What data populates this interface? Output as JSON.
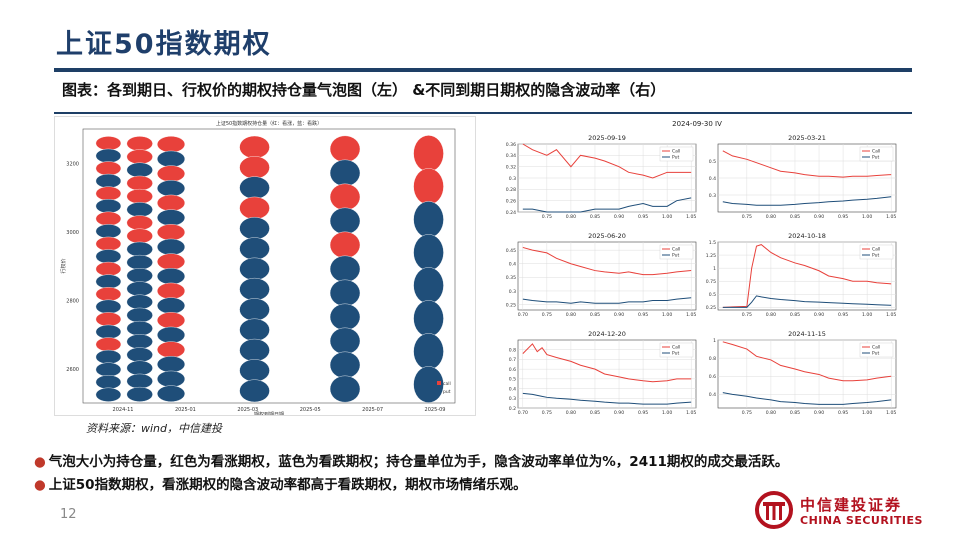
{
  "page": {
    "title": "上证50指数期权",
    "caption": "图表：各到期日、行权价的期权持仓量气泡图（左） &不同到期日期权的隐含波动率（右）",
    "source": "资料来源：wind，中信建投",
    "bullets": [
      "气泡大小为持仓量，红色为看涨期权，蓝色为看跌期权；持仓量单位为手，隐含波动率单位为%，2411期权的成交最活跃。",
      "上证50指数期权，看涨期权的隐含波动率都高于看跌期权，期权市场情绪乐观。"
    ],
    "bullet_marker": "●",
    "page_number": "12",
    "logo": {
      "cn": "中信建投证券",
      "en": "CHINA SECURITIES"
    },
    "colors": {
      "call": "#e8413b",
      "put": "#1f4e79",
      "brand": "#b3121f",
      "accent": "#1e3f66"
    }
  },
  "chart_data": [
    {
      "type": "scatter",
      "title": "上证50指数期权持仓量（红：看涨，蓝：看跌）",
      "xlabel": "期权到期日期",
      "ylabel": "行权价",
      "x_ticks": [
        "2024-11",
        "2025-01",
        "2025-03",
        "2025-05",
        "2025-07",
        "2025-09"
      ],
      "y_ticks": [
        2600,
        2800,
        3000,
        3200
      ],
      "ylim": [
        2500,
        3300
      ],
      "legend": [
        "call",
        "put"
      ],
      "expiries": [
        {
          "x": 0.05,
          "n_call": 9,
          "n_put": 12
        },
        {
          "x": 0.14,
          "n_call": 6,
          "n_put": 14
        },
        {
          "x": 0.23,
          "n_call": 8,
          "n_put": 10
        },
        {
          "x": 0.47,
          "n_call": 3,
          "n_put": 10
        },
        {
          "x": 0.73,
          "n_call": 3,
          "n_put": 8
        },
        {
          "x": 0.97,
          "n_call": 2,
          "n_put": 6
        }
      ]
    },
    {
      "type": "line",
      "title": "2025-09-19",
      "x": [
        0.7,
        0.72,
        0.75,
        0.77,
        0.8,
        0.82,
        0.85,
        0.87,
        0.9,
        0.92,
        0.95,
        0.97,
        1.0,
        1.02,
        1.05
      ],
      "series": [
        {
          "name": "Call",
          "values": [
            0.36,
            0.35,
            0.34,
            0.35,
            0.32,
            0.34,
            0.335,
            0.33,
            0.32,
            0.31,
            0.305,
            0.3,
            0.31,
            0.31,
            0.31
          ]
        },
        {
          "name": "Put",
          "values": [
            0.245,
            0.245,
            0.24,
            0.24,
            0.24,
            0.24,
            0.245,
            0.245,
            0.245,
            0.25,
            0.255,
            0.25,
            0.25,
            0.26,
            0.265
          ]
        }
      ],
      "ylim": [
        0.24,
        0.36
      ],
      "y_ticks": [
        0.24,
        0.26,
        0.28,
        0.3,
        0.32,
        0.34,
        0.36
      ],
      "x_ticks": [
        0.75,
        0.8,
        0.85,
        0.9,
        0.95,
        1.0,
        1.05
      ]
    },
    {
      "type": "line",
      "title": "2025-03-21",
      "x": [
        0.7,
        0.72,
        0.75,
        0.77,
        0.8,
        0.82,
        0.85,
        0.87,
        0.9,
        0.92,
        0.95,
        0.97,
        1.0,
        1.02,
        1.05
      ],
      "series": [
        {
          "name": "Call",
          "values": [
            0.56,
            0.53,
            0.51,
            0.49,
            0.46,
            0.44,
            0.43,
            0.42,
            0.41,
            0.41,
            0.405,
            0.41,
            0.41,
            0.415,
            0.42
          ]
        },
        {
          "name": "Put",
          "values": [
            0.26,
            0.25,
            0.245,
            0.24,
            0.24,
            0.24,
            0.245,
            0.25,
            0.255,
            0.26,
            0.265,
            0.27,
            0.275,
            0.28,
            0.29
          ]
        }
      ],
      "ylim": [
        0.2,
        0.6
      ],
      "y_ticks": [
        0.3,
        0.4,
        0.5
      ],
      "x_ticks": [
        0.75,
        0.8,
        0.85,
        0.9,
        0.95,
        1.0,
        1.05
      ]
    },
    {
      "type": "line",
      "title": "2025-06-20",
      "x": [
        0.7,
        0.72,
        0.75,
        0.77,
        0.8,
        0.82,
        0.85,
        0.87,
        0.9,
        0.92,
        0.95,
        0.97,
        1.0,
        1.02,
        1.05
      ],
      "series": [
        {
          "name": "Call",
          "values": [
            0.46,
            0.45,
            0.44,
            0.42,
            0.4,
            0.39,
            0.375,
            0.37,
            0.365,
            0.37,
            0.36,
            0.36,
            0.365,
            0.37,
            0.375
          ]
        },
        {
          "name": "Put",
          "values": [
            0.27,
            0.265,
            0.26,
            0.26,
            0.255,
            0.26,
            0.255,
            0.255,
            0.255,
            0.26,
            0.26,
            0.265,
            0.265,
            0.27,
            0.275
          ]
        }
      ],
      "ylim": [
        0.23,
        0.48
      ],
      "y_ticks": [
        0.25,
        0.3,
        0.35,
        0.4,
        0.45
      ],
      "x_ticks": [
        0.7,
        0.75,
        0.8,
        0.85,
        0.9,
        0.95,
        1.0,
        1.05
      ]
    },
    {
      "type": "line",
      "title": "2024-10-18",
      "x": [
        0.7,
        0.72,
        0.75,
        0.76,
        0.77,
        0.78,
        0.8,
        0.82,
        0.85,
        0.87,
        0.9,
        0.92,
        0.95,
        0.97,
        1.0,
        1.02,
        1.05
      ],
      "series": [
        {
          "name": "Call",
          "values": [
            0.25,
            0.26,
            0.27,
            1.0,
            1.42,
            1.45,
            1.3,
            1.2,
            1.1,
            1.05,
            0.95,
            0.85,
            0.8,
            0.75,
            0.75,
            0.72,
            0.7
          ]
        },
        {
          "name": "Put",
          "values": [
            0.25,
            0.25,
            0.25,
            0.35,
            0.47,
            0.45,
            0.42,
            0.4,
            0.38,
            0.36,
            0.35,
            0.34,
            0.33,
            0.32,
            0.31,
            0.3,
            0.29
          ]
        }
      ],
      "ylim": [
        0.2,
        1.5
      ],
      "y_ticks": [
        0.25,
        0.5,
        0.75,
        1.0,
        1.25,
        1.5
      ],
      "x_ticks": [
        0.75,
        0.8,
        0.85,
        0.9,
        0.95,
        1.0,
        1.05
      ]
    },
    {
      "type": "line",
      "title": "2024-12-20",
      "x": [
        0.7,
        0.72,
        0.73,
        0.74,
        0.75,
        0.77,
        0.8,
        0.82,
        0.85,
        0.87,
        0.9,
        0.92,
        0.95,
        0.97,
        1.0,
        1.02,
        1.05
      ],
      "series": [
        {
          "name": "Call",
          "values": [
            0.76,
            0.86,
            0.78,
            0.82,
            0.75,
            0.72,
            0.68,
            0.64,
            0.6,
            0.55,
            0.52,
            0.5,
            0.48,
            0.47,
            0.48,
            0.5,
            0.5
          ]
        },
        {
          "name": "Put",
          "values": [
            0.35,
            0.34,
            0.33,
            0.32,
            0.31,
            0.3,
            0.29,
            0.28,
            0.27,
            0.26,
            0.25,
            0.25,
            0.24,
            0.24,
            0.24,
            0.25,
            0.26
          ]
        }
      ],
      "ylim": [
        0.2,
        0.9
      ],
      "y_ticks": [
        0.2,
        0.3,
        0.4,
        0.5,
        0.6,
        0.7,
        0.8
      ],
      "x_ticks": [
        0.7,
        0.75,
        0.8,
        0.85,
        0.9,
        0.95,
        1.0,
        1.05
      ]
    },
    {
      "type": "line",
      "title": "2024-11-15",
      "x": [
        0.7,
        0.72,
        0.75,
        0.77,
        0.8,
        0.82,
        0.85,
        0.87,
        0.9,
        0.92,
        0.95,
        0.97,
        1.0,
        1.02,
        1.05
      ],
      "series": [
        {
          "name": "Call",
          "values": [
            0.98,
            0.95,
            0.9,
            0.82,
            0.78,
            0.72,
            0.68,
            0.65,
            0.62,
            0.58,
            0.55,
            0.55,
            0.56,
            0.58,
            0.6
          ]
        },
        {
          "name": "Put",
          "values": [
            0.42,
            0.4,
            0.38,
            0.36,
            0.34,
            0.32,
            0.31,
            0.3,
            0.29,
            0.29,
            0.29,
            0.3,
            0.31,
            0.32,
            0.34
          ]
        }
      ],
      "ylim": [
        0.25,
        1.0
      ],
      "y_ticks": [
        0.4,
        0.6,
        0.8,
        1.0
      ],
      "x_ticks": [
        0.75,
        0.8,
        0.85,
        0.9,
        0.95,
        1.0,
        1.05
      ]
    }
  ],
  "iv_chart_title": "2024-09-30 IV"
}
